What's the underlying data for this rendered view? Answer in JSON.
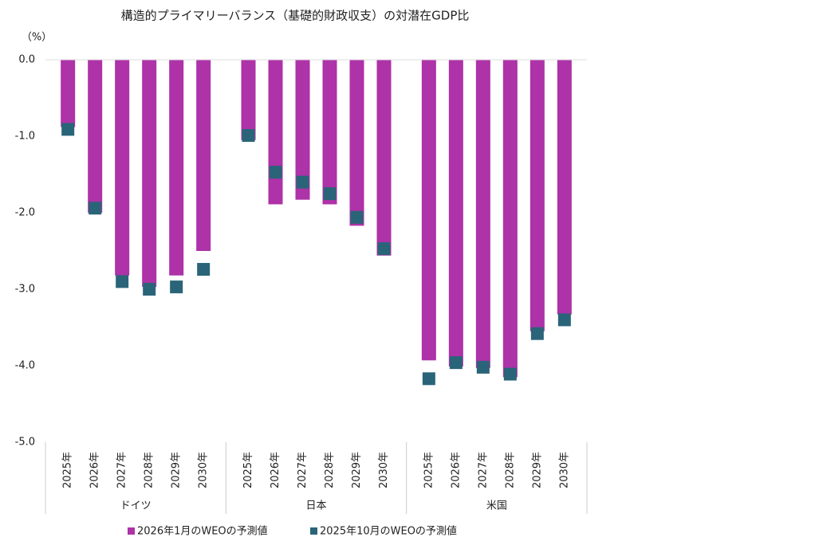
{
  "chart_data": {
    "type": "bar",
    "title": "構造的プライマリーバランス（基礎的財政収支）の対潜在GDP比",
    "y_unit": "（%）",
    "x_groups": [
      "ドイツ",
      "日本",
      "米国"
    ],
    "categories": [
      "2025年",
      "2026年",
      "2027年",
      "2028年",
      "2029年",
      "2030年",
      "2025年",
      "2026年",
      "2027年",
      "2028年",
      "2029年",
      "2030年",
      "2025年",
      "2026年",
      "2027年",
      "2028年",
      "2029年",
      "2030年"
    ],
    "series": [
      {
        "name": "2026年1月のWEOの予測値",
        "color": "#ae32a8",
        "marker": "bar",
        "values": [
          -0.88,
          -2.0,
          -2.82,
          -2.97,
          -2.82,
          -2.5,
          -1.05,
          -1.89,
          -1.83,
          -1.89,
          -2.17,
          -2.56,
          -3.93,
          -4.01,
          -4.03,
          -4.15,
          -3.55,
          -3.33
        ]
      },
      {
        "name": "2025年10月のWEOの予測値",
        "color": "#2a6478",
        "marker": "square",
        "values": [
          -0.91,
          -1.94,
          -2.9,
          -3.0,
          -2.97,
          -2.74,
          -0.99,
          -1.47,
          -1.6,
          -1.75,
          -2.06,
          -2.47,
          -4.17,
          -3.96,
          -4.02,
          -4.11,
          -3.58,
          -3.4
        ]
      }
    ],
    "ylim": [
      0,
      -5
    ],
    "yticks": [
      {
        "value": 0,
        "label": "0.0"
      },
      {
        "value": -1,
        "label": "-1.0"
      },
      {
        "value": -2,
        "label": "-2.0"
      },
      {
        "value": -3,
        "label": "-3.0"
      },
      {
        "value": -4,
        "label": "-4.0"
      },
      {
        "value": -5,
        "label": "-5.0"
      }
    ]
  }
}
